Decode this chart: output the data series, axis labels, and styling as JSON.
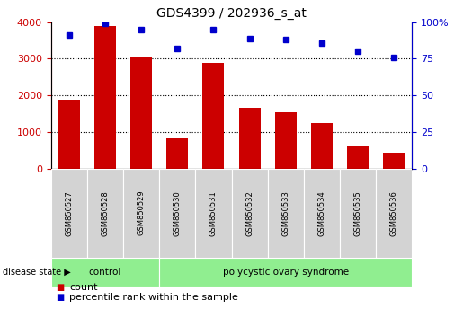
{
  "title": "GDS4399 / 202936_s_at",
  "samples": [
    "GSM850527",
    "GSM850528",
    "GSM850529",
    "GSM850530",
    "GSM850531",
    "GSM850532",
    "GSM850533",
    "GSM850534",
    "GSM850535",
    "GSM850536"
  ],
  "counts": [
    1880,
    3900,
    3060,
    820,
    2900,
    1660,
    1530,
    1250,
    620,
    440
  ],
  "percentiles": [
    91,
    99,
    95,
    82,
    95,
    89,
    88,
    86,
    80,
    76
  ],
  "bar_color": "#cc0000",
  "dot_color": "#0000cc",
  "ylim_left": [
    0,
    4000
  ],
  "ylim_right": [
    0,
    100
  ],
  "yticks_left": [
    0,
    1000,
    2000,
    3000,
    4000
  ],
  "yticks_right": [
    0,
    25,
    50,
    75,
    100
  ],
  "control_samples": 3,
  "control_label": "control",
  "disease_label": "polycystic ovary syndrome",
  "disease_state_label": "disease state",
  "legend_count": "count",
  "legend_percentile": "percentile rank within the sample",
  "control_color": "#90ee90",
  "disease_color": "#90ee90",
  "tick_bg_color": "#d3d3d3",
  "title_fontsize": 10,
  "tick_fontsize": 8,
  "legend_fontsize": 8
}
